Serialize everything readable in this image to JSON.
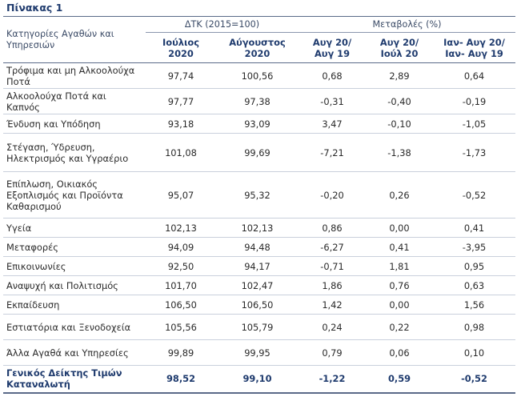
{
  "title": "Πίνακας 1",
  "header": {
    "category_label": "Κατηγορίες Αγαθών και Υπηρεσιών",
    "group_index": "ΔΤΚ (2015=100)",
    "group_change": "Μεταβολές (%)",
    "columns": [
      "Ιούλιος 2020",
      "Αύγουστος 2020",
      "Αυγ 20/ Αυγ 19",
      "Αυγ 20/ Ιούλ 20",
      "Ιαν- Αυγ 20/ Ιαν- Αυγ 19"
    ]
  },
  "rows": [
    {
      "label": "Τρόφιμα και μη Αλκοολούχα Ποτά",
      "values": [
        "97,74",
        "100,56",
        "0,68",
        "2,89",
        "0,64"
      ]
    },
    {
      "label": "Αλκοολούχα Ποτά και Καπνός",
      "values": [
        "97,77",
        "97,38",
        "-0,31",
        "-0,40",
        "-0,19"
      ]
    },
    {
      "label": "Ένδυση και Υπόδηση",
      "values": [
        "93,18",
        "93,09",
        "3,47",
        "-0,10",
        "-1,05"
      ]
    },
    {
      "label": "Στέγαση, Ύδρευση, Ηλεκτρισμός και Υγραέριο",
      "values": [
        "101,08",
        "99,69",
        "-7,21",
        "-1,38",
        "-1,73"
      ]
    },
    {
      "label": "Επίπλωση, Οικιακός Εξοπλισμός και Προϊόντα Καθαρισμού",
      "values": [
        "95,07",
        "95,32",
        "-0,20",
        "0,26",
        "-0,52"
      ]
    },
    {
      "label": "Υγεία",
      "values": [
        "102,13",
        "102,13",
        "0,86",
        "0,00",
        "0,41"
      ]
    },
    {
      "label": "Μεταφορές",
      "values": [
        "94,09",
        "94,48",
        "-6,27",
        "0,41",
        "-3,95"
      ]
    },
    {
      "label": "Επικοινωνίες",
      "values": [
        "92,50",
        "94,17",
        "-0,71",
        "1,81",
        "0,95"
      ]
    },
    {
      "label": "Αναψυχή και Πολιτισμός",
      "values": [
        "101,70",
        "102,47",
        "1,86",
        "0,76",
        "0,63"
      ]
    },
    {
      "label": "Εκπαίδευση",
      "values": [
        "106,50",
        "106,50",
        "1,42",
        "0,00",
        "1,56"
      ]
    },
    {
      "label": "Εστιατόρια και Ξενοδοχεία",
      "values": [
        "105,56",
        "105,79",
        "0,24",
        "0,22",
        "0,98"
      ]
    },
    {
      "label": "Άλλα Αγαθά και Υπηρεσίες",
      "values": [
        "99,89",
        "99,95",
        "0,79",
        "0,06",
        "0,10"
      ]
    }
  ],
  "total": {
    "label": "Γενικός Δείκτης Τιμών Καταναλωτή",
    "values": [
      "98,52",
      "99,10",
      "-1,22",
      "0,59",
      "-0,52"
    ]
  }
}
